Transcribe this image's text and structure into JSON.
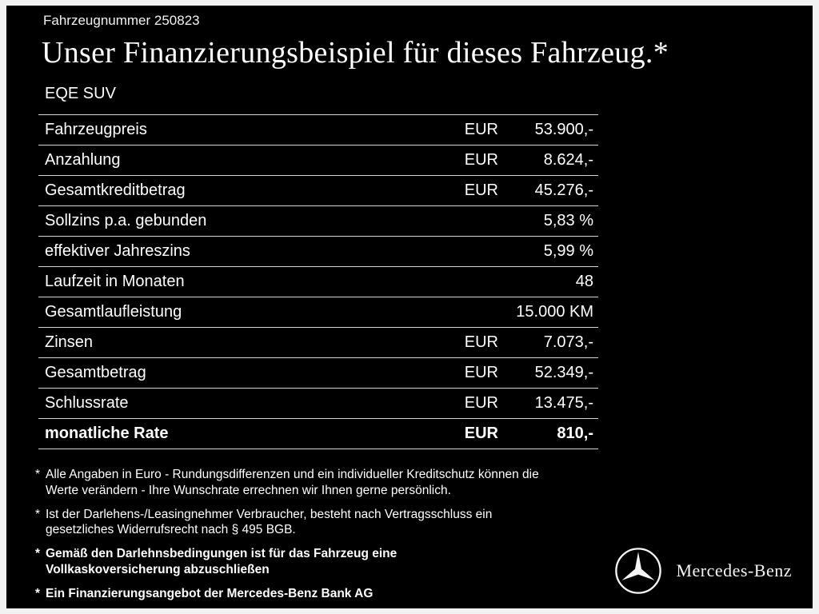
{
  "header": {
    "vehicle_number": "Fahrzeugnummer 250823",
    "title": "Unser Finanzierungsbeispiel für dieses Fahrzeug.*",
    "model": "EQE SUV"
  },
  "table": {
    "rows": [
      {
        "label": "Fahrzeugpreis",
        "currency": "EUR",
        "value": "53.900,-",
        "bold": false
      },
      {
        "label": "Anzahlung",
        "currency": "EUR",
        "value": "8.624,-",
        "bold": false
      },
      {
        "label": "Gesamtkreditbetrag",
        "currency": "EUR",
        "value": "45.276,-",
        "bold": false
      },
      {
        "label": "Sollzins p.a. gebunden",
        "currency": "",
        "value": "5,83 %",
        "bold": false
      },
      {
        "label": "effektiver Jahreszins",
        "currency": "",
        "value": "5,99 %",
        "bold": false
      },
      {
        "label": "Laufzeit in Monaten",
        "currency": "",
        "value": "48",
        "bold": false
      },
      {
        "label": "Gesamtlaufleistung",
        "currency": "",
        "value": "15.000 KM",
        "bold": false
      },
      {
        "label": "Zinsen",
        "currency": "EUR",
        "value": "7.073,-",
        "bold": false
      },
      {
        "label": "Gesamtbetrag",
        "currency": "EUR",
        "value": "52.349,-",
        "bold": false
      },
      {
        "label": "Schlussrate",
        "currency": "EUR",
        "value": "13.475,-",
        "bold": false
      },
      {
        "label": "monatliche Rate",
        "currency": "EUR",
        "value": "810,-",
        "bold": true
      }
    ]
  },
  "footnotes": [
    {
      "marker": "*",
      "bold": false,
      "text": "Alle Angaben in Euro - Rundungsdifferenzen und ein individueller Kreditschutz können die\nWerte verändern - Ihre Wunschrate errechnen wir Ihnen gerne persönlich."
    },
    {
      "marker": "*",
      "bold": false,
      "text": "Ist der Darlehens-/Leasingnehmer Verbraucher, besteht nach Vertragsschluss ein\ngesetzliches Widerrufsrecht nach § 495 BGB."
    },
    {
      "marker": "*",
      "bold": true,
      "text": "Gemäß den Darlehnsbedingungen ist für das Fahrzeug eine\nVollkaskoversicherung abzuschließen"
    },
    {
      "marker": "*",
      "bold": true,
      "text": "Ein Finanzierungsangebot der Mercedes-Benz Bank AG"
    }
  ],
  "brand": {
    "logo": "mercedes-star-icon",
    "name": "Mercedes-Benz"
  }
}
